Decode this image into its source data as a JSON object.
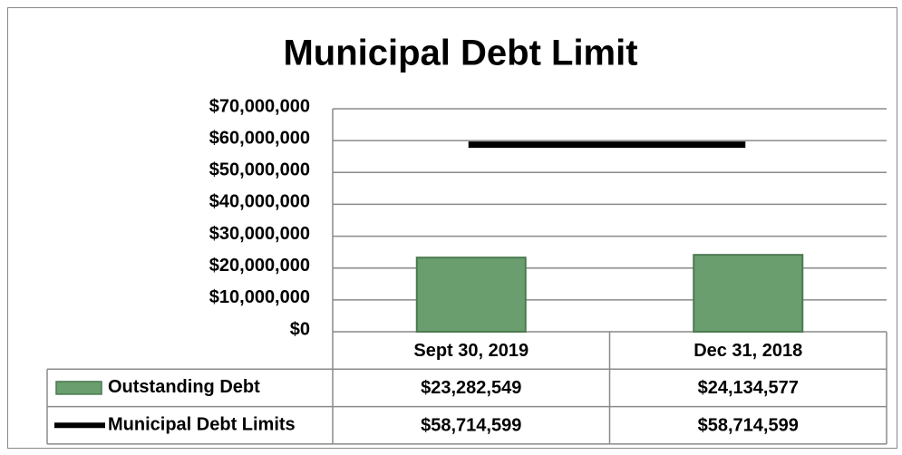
{
  "chart_data": {
    "type": "bar",
    "title": "Municipal Debt Limit",
    "categories": [
      "Sept 30, 2019",
      "Dec 31, 2018"
    ],
    "series": [
      {
        "name": "Outstanding Debt",
        "type": "bar",
        "color": "#6a9e6e",
        "values": [
          23282549,
          24134577
        ],
        "value_labels": [
          "$23,282,549",
          "$24,134,577"
        ]
      },
      {
        "name": "Municipal Debt Limits",
        "type": "line",
        "color": "#000000",
        "values": [
          58714599,
          58714599
        ],
        "value_labels": [
          "$58,714,599",
          "$58,714,599"
        ]
      }
    ],
    "ylim": [
      0,
      70000000
    ],
    "yticks": [
      {
        "value": 0,
        "label": "$0"
      },
      {
        "value": 10000000,
        "label": "$10,000,000"
      },
      {
        "value": 20000000,
        "label": "$20,000,000"
      },
      {
        "value": 30000000,
        "label": "$30,000,000"
      },
      {
        "value": 40000000,
        "label": "$40,000,000"
      },
      {
        "value": 50000000,
        "label": "$50,000,000"
      },
      {
        "value": 60000000,
        "label": "$60,000,000"
      },
      {
        "value": 70000000,
        "label": "$70,000,000"
      }
    ],
    "grid": true,
    "data_table": true
  }
}
